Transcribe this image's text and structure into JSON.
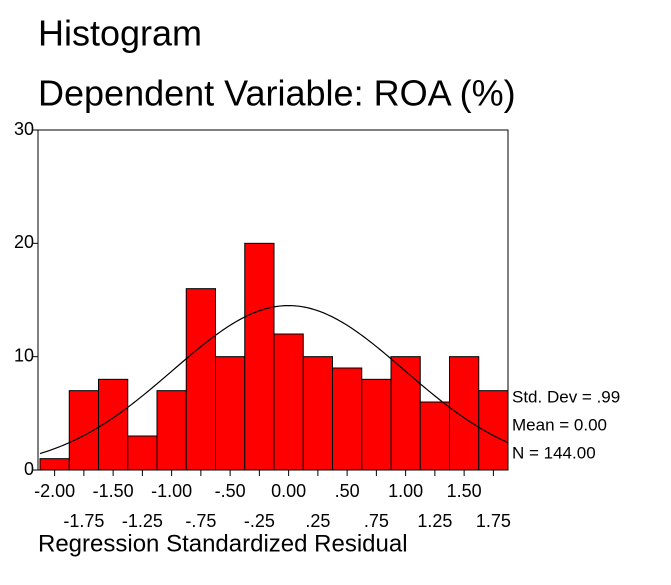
{
  "chart_data": {
    "type": "histogram",
    "title": "Histogram",
    "subtitle": "Dependent Variable: ROA (%)",
    "x_label": "Regression Standardized Residual",
    "bins": [
      -2.125,
      -1.875,
      -1.625,
      -1.375,
      -1.125,
      -0.875,
      -0.625,
      -0.375,
      -0.125,
      0.125,
      0.375,
      0.625,
      0.875,
      1.125,
      1.375,
      1.625,
      1.875
    ],
    "values": [
      1,
      7,
      8,
      3,
      7,
      16,
      10,
      20,
      12,
      10,
      9,
      8,
      10,
      6,
      10,
      7
    ],
    "color": "#ff0000",
    "xlim": [
      -2.125,
      1.875
    ],
    "ylim": [
      0,
      30
    ],
    "yticks": [
      0,
      10,
      20,
      30
    ],
    "xticks": [
      {
        "value": -2.0,
        "label": "-2.00"
      },
      {
        "value": -1.75,
        "label": "-1.75"
      },
      {
        "value": -1.5,
        "label": "-1.50"
      },
      {
        "value": -1.25,
        "label": "-1.25"
      },
      {
        "value": -1.0,
        "label": "-1.00"
      },
      {
        "value": -0.75,
        "label": "-.75"
      },
      {
        "value": -0.5,
        "label": "-.50"
      },
      {
        "value": -0.25,
        "label": "-.25"
      },
      {
        "value": 0,
        "label": "0.00"
      },
      {
        "value": 0.25,
        "label": ".25"
      },
      {
        "value": 0.5,
        "label": ".50"
      },
      {
        "value": 0.75,
        "label": ".75"
      },
      {
        "value": 1.0,
        "label": "1.00"
      },
      {
        "value": 1.25,
        "label": "1.25"
      },
      {
        "value": 1.5,
        "label": "1.50"
      },
      {
        "value": 1.75,
        "label": "1.75"
      }
    ],
    "normal_curve": {
      "mean": 0,
      "sd": 0.99,
      "n": 144
    },
    "annotations": [
      "Std. Dev = .99",
      "Mean = 0.00",
      "N = 144.00"
    ]
  }
}
